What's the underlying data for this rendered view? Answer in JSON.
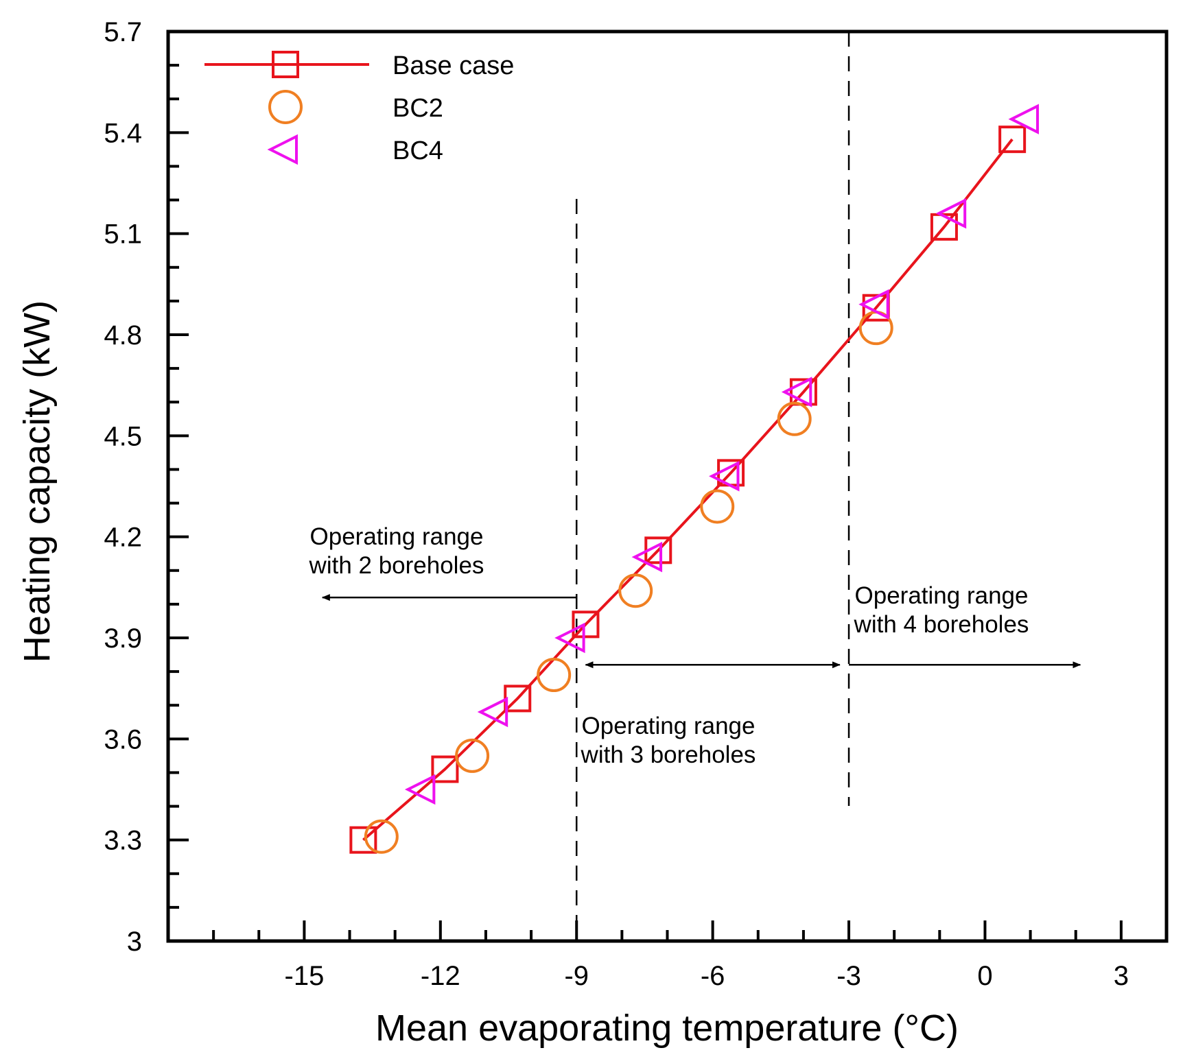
{
  "chart_data": {
    "type": "scatter",
    "title": "",
    "xlabel": "Mean evaporating temperature (°C)",
    "ylabel": "Heating capacity (kW)",
    "xlim": [
      -18,
      4
    ],
    "ylim": [
      3,
      5.7
    ],
    "xticks": [
      -15,
      -12,
      -9,
      -6,
      -3,
      0,
      3
    ],
    "xtick_labels": [
      "-15",
      "-12",
      "-9",
      "-6",
      "-3",
      "0",
      "3"
    ],
    "yticks": [
      3,
      3.3,
      3.6,
      3.9,
      4.2,
      4.5,
      4.8,
      5.1,
      5.4,
      5.7
    ],
    "ytick_labels": [
      "3",
      "3.3",
      "3.6",
      "3.9",
      "4.2",
      "4.5",
      "4.8",
      "5.1",
      "5.4",
      "5.7"
    ],
    "grid": false,
    "legend_position": "top-left",
    "series": [
      {
        "name": "Base case",
        "marker": "square",
        "line": true,
        "color": "#e8141c",
        "x": [
          -13.7,
          -11.9,
          -10.3,
          -8.8,
          -7.2,
          -5.6,
          -4.0,
          -2.4,
          -0.9,
          0.6
        ],
        "y": [
          3.3,
          3.51,
          3.72,
          3.94,
          4.16,
          4.39,
          4.63,
          4.88,
          5.12,
          5.38
        ]
      },
      {
        "name": "BC2",
        "marker": "circle",
        "line": false,
        "color": "#f07f22",
        "x": [
          -13.3,
          -11.3,
          -9.5,
          -7.7,
          -5.9,
          -4.2,
          -2.4
        ],
        "y": [
          3.31,
          3.55,
          3.79,
          4.04,
          4.29,
          4.55,
          4.82
        ]
      },
      {
        "name": "BC4",
        "marker": "triangle-left",
        "line": false,
        "color": "#ee11ee",
        "x": [
          -12.4,
          -10.8,
          -9.1,
          -7.4,
          -5.7,
          -4.1,
          -2.4,
          -0.7,
          0.9
        ],
        "y": [
          3.45,
          3.68,
          3.9,
          4.14,
          4.38,
          4.63,
          4.89,
          5.16,
          5.44
        ]
      }
    ],
    "vlines": [
      -9,
      -3
    ],
    "annotations": [
      {
        "id": "range2",
        "line1": "Operating range",
        "line2": "with 2 boreholes",
        "arrow": "left",
        "arrow_from_x": -9,
        "arrow_to_x": -14.6,
        "arrow_y": 4.02
      },
      {
        "id": "range3",
        "line1": "Operating range",
        "line2": "with 3 boreholes",
        "arrow": "both",
        "arrow_from_x": -8.8,
        "arrow_to_x": -3.2,
        "arrow_y": 3.82
      },
      {
        "id": "range4",
        "line1": "Operating range",
        "line2": "with 4 boreholes",
        "arrow": "right",
        "arrow_from_x": -3,
        "arrow_to_x": 2.1,
        "arrow_y": 3.82
      }
    ]
  }
}
